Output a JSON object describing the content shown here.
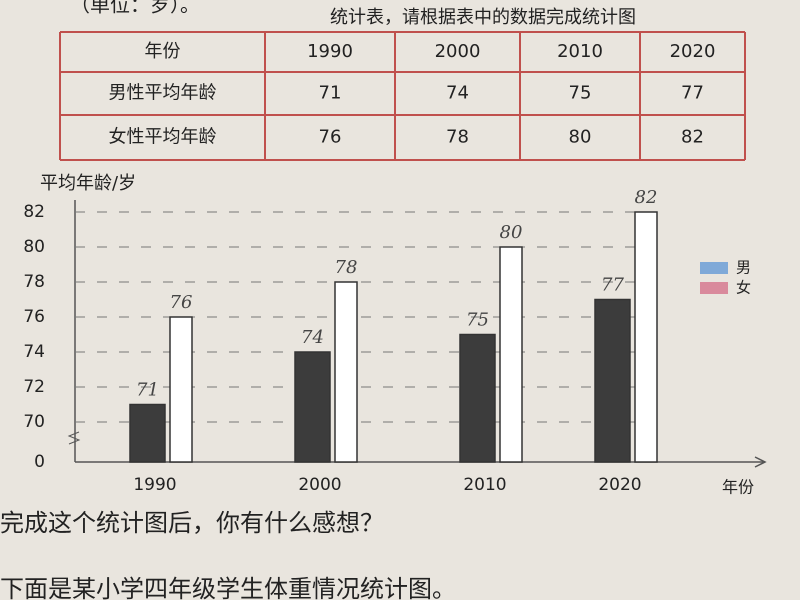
{
  "header": {
    "lines": [
      "（单位：岁）。",
      "统计表，请根据表中的数据完成统计图"
    ]
  },
  "table": {
    "rows": [
      [
        "年份",
        "1990",
        "2000",
        "2010",
        "2020"
      ],
      [
        "男性平均年龄",
        "71",
        "74",
        "75",
        "77"
      ],
      [
        "女性平均年龄",
        "76",
        "78",
        "80",
        "82"
      ]
    ]
  },
  "chart_data": {
    "type": "bar",
    "y_label": "平均年龄/岁",
    "x_label": "年份",
    "categories": [
      "1990",
      "2000",
      "2010",
      "2020"
    ],
    "series": [
      {
        "name": "男",
        "color": "#3c3c3c",
        "legend_color": "#7fa9d8",
        "values": [
          71,
          74,
          75,
          77
        ]
      },
      {
        "name": "女",
        "color": "#ffffff",
        "legend_color": "#d98a9c",
        "values": [
          76,
          78,
          80,
          82
        ]
      }
    ],
    "ylim": [
      70,
      82
    ],
    "yticks": [
      0,
      70,
      72,
      74,
      76,
      78,
      80,
      82
    ],
    "axis_break": true,
    "grid": "dashed"
  },
  "footer": {
    "lines": [
      "完成这个统计图后，你有什么感想？",
      "下面是某小学四年级学生体重情况统计图。"
    ]
  }
}
